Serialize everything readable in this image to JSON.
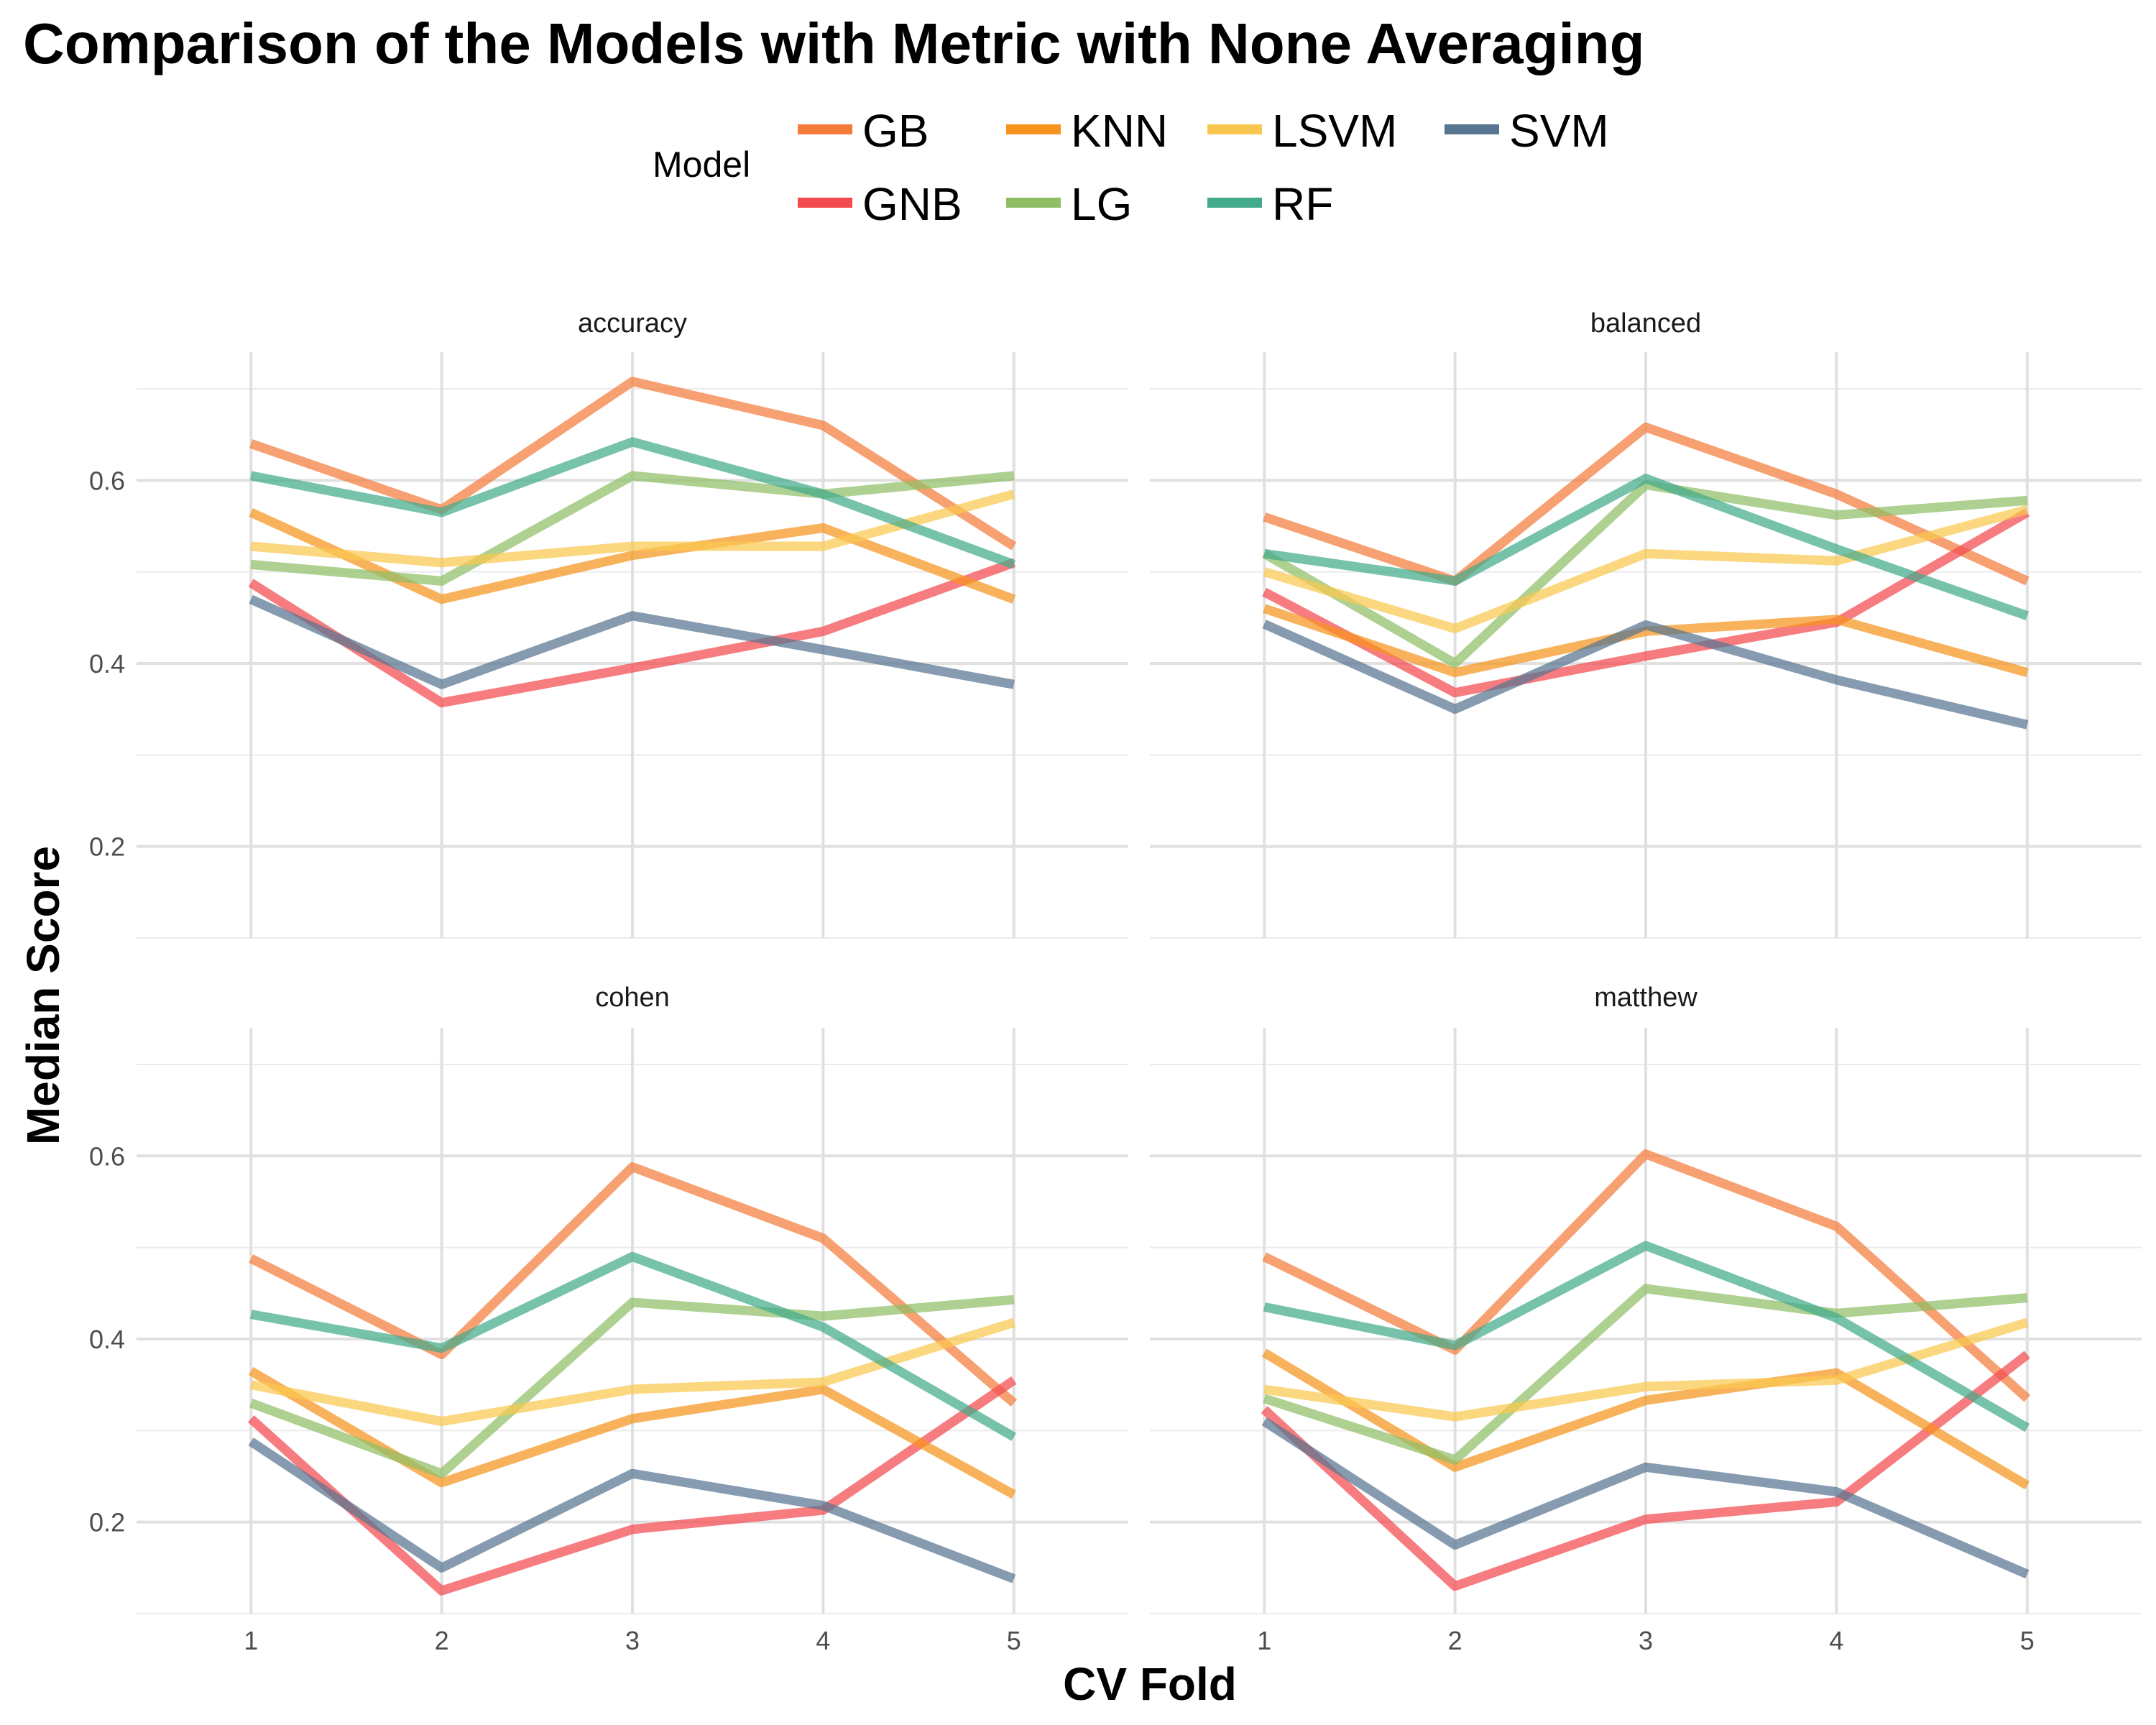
{
  "chart_data": {
    "type": "line",
    "title": "Comparison of the Models with Metric with None Averaging",
    "xlabel": "CV Fold",
    "ylabel": "Median Score",
    "x": [
      1,
      2,
      3,
      4,
      5
    ],
    "x_ticks": [
      "1",
      "2",
      "3",
      "4",
      "5"
    ],
    "y_ticks": [
      "0.2",
      "0.4",
      "0.6"
    ],
    "ylim": [
      0.1,
      0.74
    ],
    "xlim": [
      0.4,
      5.6
    ],
    "grid": true,
    "legend": {
      "title": "Model",
      "placement": "top",
      "entries": [
        "GB",
        "GNB",
        "KNN",
        "LG",
        "LSVM",
        "RF",
        "SVM"
      ]
    },
    "colors": {
      "GB": "#F47B3A",
      "GNB": "#F44A4E",
      "KNN": "#F7941D",
      "LG": "#8FBE65",
      "LSVM": "#F9C74F",
      "RF": "#43AA8B",
      "SVM": "#577590"
    },
    "panels": [
      {
        "facet": "accuracy",
        "series": [
          {
            "name": "GB",
            "values": [
              0.64,
              0.568,
              0.708,
              0.66,
              0.528
            ]
          },
          {
            "name": "GNB",
            "values": [
              0.488,
              0.357,
              0.395,
              0.435,
              0.51
            ]
          },
          {
            "name": "KNN",
            "values": [
              0.565,
              0.47,
              0.518,
              0.548,
              0.47
            ]
          },
          {
            "name": "LG",
            "values": [
              0.508,
              0.49,
              0.605,
              0.585,
              0.605
            ]
          },
          {
            "name": "LSVM",
            "values": [
              0.528,
              0.51,
              0.528,
              0.528,
              0.585
            ]
          },
          {
            "name": "RF",
            "values": [
              0.605,
              0.565,
              0.642,
              0.585,
              0.508
            ]
          },
          {
            "name": "SVM",
            "values": [
              0.47,
              0.377,
              0.452,
              0.415,
              0.377
            ]
          }
        ]
      },
      {
        "facet": "balanced",
        "series": [
          {
            "name": "GB",
            "values": [
              0.56,
              0.49,
              0.658,
              0.585,
              0.49
            ]
          },
          {
            "name": "GNB",
            "values": [
              0.478,
              0.368,
              0.408,
              0.445,
              0.565
            ]
          },
          {
            "name": "KNN",
            "values": [
              0.46,
              0.39,
              0.435,
              0.448,
              0.39
            ]
          },
          {
            "name": "LG",
            "values": [
              0.52,
              0.4,
              0.595,
              0.562,
              0.578
            ]
          },
          {
            "name": "LSVM",
            "values": [
              0.5,
              0.438,
              0.52,
              0.512,
              0.568
            ]
          },
          {
            "name": "RF",
            "values": [
              0.52,
              0.49,
              0.602,
              0.525,
              0.452
            ]
          },
          {
            "name": "SVM",
            "values": [
              0.443,
              0.35,
              0.442,
              0.382,
              0.333
            ]
          }
        ]
      },
      {
        "facet": "cohen",
        "series": [
          {
            "name": "GB",
            "values": [
              0.488,
              0.383,
              0.588,
              0.51,
              0.33
            ]
          },
          {
            "name": "GNB",
            "values": [
              0.313,
              0.125,
              0.192,
              0.213,
              0.355
            ]
          },
          {
            "name": "KNN",
            "values": [
              0.365,
              0.243,
              0.313,
              0.345,
              0.23
            ]
          },
          {
            "name": "LG",
            "values": [
              0.33,
              0.253,
              0.44,
              0.425,
              0.443
            ]
          },
          {
            "name": "LSVM",
            "values": [
              0.35,
              0.31,
              0.345,
              0.353,
              0.418
            ]
          },
          {
            "name": "RF",
            "values": [
              0.427,
              0.39,
              0.49,
              0.413,
              0.293
            ]
          },
          {
            "name": "SVM",
            "values": [
              0.288,
              0.15,
              0.253,
              0.218,
              0.138
            ]
          }
        ]
      },
      {
        "facet": "matthew",
        "series": [
          {
            "name": "GB",
            "values": [
              0.49,
              0.388,
              0.602,
              0.523,
              0.335
            ]
          },
          {
            "name": "GNB",
            "values": [
              0.323,
              0.13,
              0.203,
              0.222,
              0.383
            ]
          },
          {
            "name": "KNN",
            "values": [
              0.385,
              0.26,
              0.333,
              0.363,
              0.24
            ]
          },
          {
            "name": "LG",
            "values": [
              0.335,
              0.268,
              0.455,
              0.428,
              0.445
            ]
          },
          {
            "name": "LSVM",
            "values": [
              0.345,
              0.315,
              0.348,
              0.355,
              0.418
            ]
          },
          {
            "name": "RF",
            "values": [
              0.435,
              0.393,
              0.502,
              0.423,
              0.303
            ]
          },
          {
            "name": "SVM",
            "values": [
              0.31,
              0.175,
              0.26,
              0.233,
              0.143
            ]
          }
        ]
      }
    ]
  }
}
